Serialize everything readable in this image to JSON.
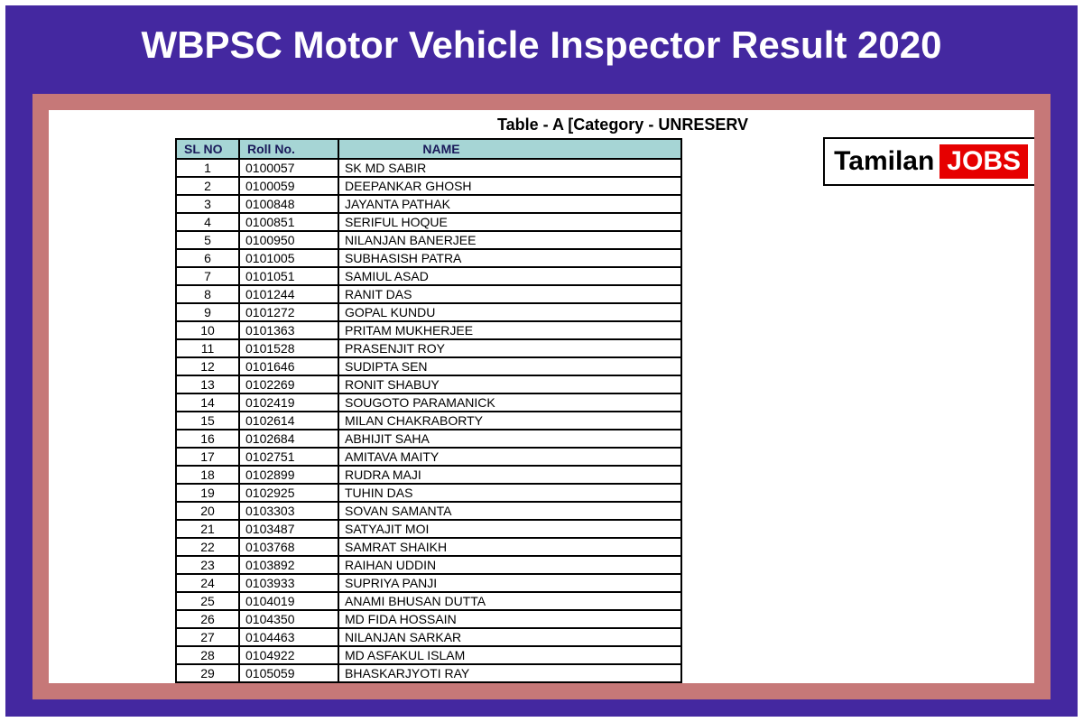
{
  "title": "WBPSC Motor Vehicle Inspector Result 2020",
  "table_caption": "Table - A [Category - UNRESERV",
  "columns": {
    "sl": "SL NO",
    "roll": "Roll No.",
    "name": "NAME"
  },
  "rows": [
    {
      "sl": "1",
      "roll": "0100057",
      "name": "SK MD SABIR"
    },
    {
      "sl": "2",
      "roll": "0100059",
      "name": "DEEPANKAR GHOSH"
    },
    {
      "sl": "3",
      "roll": "0100848",
      "name": "JAYANTA PATHAK"
    },
    {
      "sl": "4",
      "roll": "0100851",
      "name": "SERIFUL HOQUE"
    },
    {
      "sl": "5",
      "roll": "0100950",
      "name": "NILANJAN BANERJEE"
    },
    {
      "sl": "6",
      "roll": "0101005",
      "name": "SUBHASISH PATRA"
    },
    {
      "sl": "7",
      "roll": "0101051",
      "name": "SAMIUL ASAD"
    },
    {
      "sl": "8",
      "roll": "0101244",
      "name": "RANIT DAS"
    },
    {
      "sl": "9",
      "roll": "0101272",
      "name": "GOPAL KUNDU"
    },
    {
      "sl": "10",
      "roll": "0101363",
      "name": "PRITAM MUKHERJEE"
    },
    {
      "sl": "11",
      "roll": "0101528",
      "name": "PRASENJIT ROY"
    },
    {
      "sl": "12",
      "roll": "0101646",
      "name": "SUDIPTA SEN"
    },
    {
      "sl": "13",
      "roll": "0102269",
      "name": "RONIT SHABUY"
    },
    {
      "sl": "14",
      "roll": "0102419",
      "name": "SOUGOTO PARAMANICK"
    },
    {
      "sl": "15",
      "roll": "0102614",
      "name": "MILAN CHAKRABORTY"
    },
    {
      "sl": "16",
      "roll": "0102684",
      "name": "ABHIJIT SAHA"
    },
    {
      "sl": "17",
      "roll": "0102751",
      "name": "AMITAVA MAITY"
    },
    {
      "sl": "18",
      "roll": "0102899",
      "name": "RUDRA MAJI"
    },
    {
      "sl": "19",
      "roll": "0102925",
      "name": "TUHIN DAS"
    },
    {
      "sl": "20",
      "roll": "0103303",
      "name": "SOVAN SAMANTA"
    },
    {
      "sl": "21",
      "roll": "0103487",
      "name": "SATYAJIT MOI"
    },
    {
      "sl": "22",
      "roll": "0103768",
      "name": "SAMRAT SHAIKH"
    },
    {
      "sl": "23",
      "roll": "0103892",
      "name": "RAIHAN UDDIN"
    },
    {
      "sl": "24",
      "roll": "0103933",
      "name": "SUPRIYA PANJI"
    },
    {
      "sl": "25",
      "roll": "0104019",
      "name": "ANAMI BHUSAN DUTTA"
    },
    {
      "sl": "26",
      "roll": "0104350",
      "name": "MD FIDA HOSSAIN"
    },
    {
      "sl": "27",
      "roll": "0104463",
      "name": "NILANJAN SARKAR"
    },
    {
      "sl": "28",
      "roll": "0104922",
      "name": "MD ASFAKUL ISLAM"
    },
    {
      "sl": "29",
      "roll": "0105059",
      "name": "BHASKARJYOTI RAY"
    }
  ],
  "logo": {
    "left": "Tamilan",
    "right": "JOBS"
  },
  "colors": {
    "page_bg": "#4428a0",
    "outer_border": "#ffffff",
    "title_text": "#ffffff",
    "content_bg": "#c67878",
    "panel_bg": "#ffffff",
    "th_bg": "#a6d5d5",
    "th_text": "#1a1a5a",
    "cell_border": "#000000",
    "logo_red": "#e60000"
  }
}
